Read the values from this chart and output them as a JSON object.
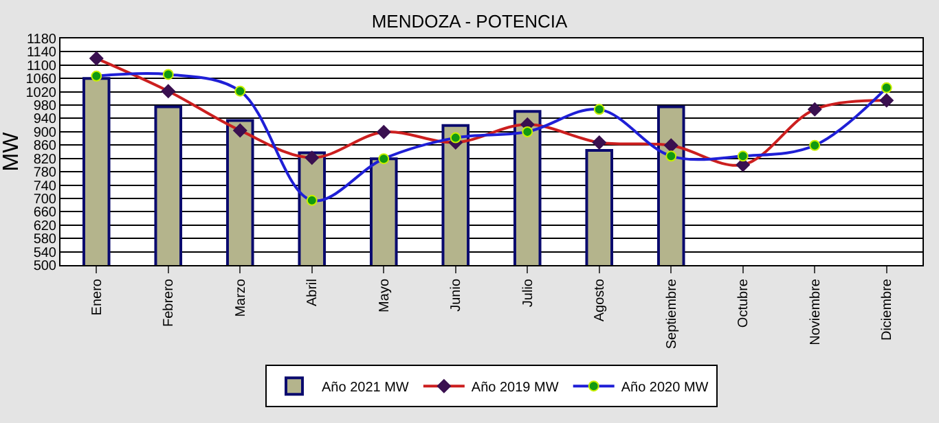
{
  "chart_data": {
    "type": "bar",
    "title": "MENDOZA - POTENCIA",
    "ylabel": "MW",
    "categories": [
      "Enero",
      "Febrero",
      "Marzo",
      "Abril",
      "Mayo",
      "Junio",
      "Julio",
      "Agosto",
      "Septiembre",
      "Octubre",
      "Noviembre",
      "Diciembre"
    ],
    "series": [
      {
        "name": "Año 2021 MW",
        "color": "#b4b48c",
        "values": [
          1060,
          975,
          934,
          837,
          819,
          919,
          961,
          844,
          975,
          null,
          null,
          null
        ]
      },
      {
        "name": "Año 2019 MW",
        "type": "line",
        "color": "#cc1f1f",
        "marker": "diamond",
        "values": [
          1120,
          1022,
          904,
          822,
          899,
          868,
          922,
          868,
          859,
          801,
          967,
          994
        ]
      },
      {
        "name": "Año 2020 MW",
        "type": "line",
        "color": "#1f1fd6",
        "marker": "circle",
        "values": [
          1067,
          1072,
          1022,
          694,
          819,
          882,
          900,
          967,
          827,
          827,
          859,
          1032
        ]
      }
    ],
    "ylim": [
      500,
      1180
    ],
    "yticks": [
      500,
      540,
      580,
      620,
      660,
      700,
      740,
      780,
      820,
      860,
      900,
      940,
      980,
      1020,
      1060,
      1100,
      1140,
      1180
    ],
    "grid": "y",
    "legend": "bottom"
  }
}
